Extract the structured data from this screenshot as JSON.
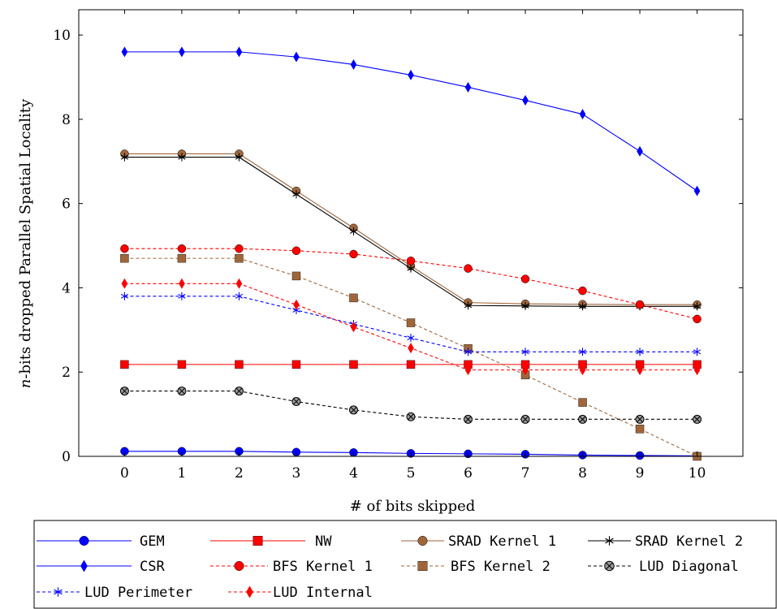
{
  "chart_data": {
    "type": "line",
    "xlabel": "# of bits skipped",
    "ylabel_prefix": "n",
    "ylabel_suffix": "-bits dropped Parallel Spatial Locality",
    "xlim": [
      -0.8,
      10.8
    ],
    "ylim": [
      0,
      10.6
    ],
    "x_ticks": [
      "0",
      "1",
      "2",
      "3",
      "4",
      "5",
      "6",
      "7",
      "8",
      "9",
      "10"
    ],
    "y_ticks": [
      "0",
      "2",
      "4",
      "6",
      "8",
      "10"
    ],
    "x": [
      0,
      1,
      2,
      3,
      4,
      5,
      6,
      7,
      8,
      9,
      10
    ],
    "grid": false,
    "legend_position": "bottom",
    "series": [
      {
        "name": "GEM",
        "color": "#0000ff",
        "dashed": false,
        "marker": "circle",
        "values": [
          0.12,
          0.12,
          0.12,
          0.1,
          0.09,
          0.07,
          0.06,
          0.05,
          0.03,
          0.02,
          0.01
        ]
      },
      {
        "name": "NW",
        "color": "#ff0000",
        "dashed": false,
        "marker": "square",
        "values": [
          2.18,
          2.18,
          2.18,
          2.18,
          2.18,
          2.18,
          2.18,
          2.18,
          2.18,
          2.18,
          2.18
        ]
      },
      {
        "name": "SRAD Kernel 1",
        "color": "#a0663a",
        "dashed": false,
        "marker": "circle",
        "values": [
          7.18,
          7.18,
          7.18,
          6.3,
          5.42,
          4.52,
          3.65,
          3.62,
          3.61,
          3.6,
          3.6
        ]
      },
      {
        "name": "SRAD Kernel 2",
        "color": "#000000",
        "dashed": false,
        "marker": "star",
        "values": [
          7.1,
          7.1,
          7.1,
          6.22,
          5.34,
          4.46,
          3.58,
          3.57,
          3.56,
          3.56,
          3.56
        ]
      },
      {
        "name": "CSR",
        "color": "#0000ff",
        "dashed": false,
        "marker": "diamond",
        "values": [
          9.6,
          9.6,
          9.6,
          9.48,
          9.3,
          9.05,
          8.76,
          8.45,
          8.12,
          7.24,
          6.3
        ]
      },
      {
        "name": "BFS Kernel 1",
        "color": "#ff0000",
        "dashed": true,
        "marker": "circle",
        "values": [
          4.93,
          4.93,
          4.93,
          4.88,
          4.8,
          4.64,
          4.46,
          4.21,
          3.93,
          3.6,
          3.26
        ]
      },
      {
        "name": "BFS Kernel 2",
        "color": "#a0663a",
        "dashed": true,
        "marker": "square",
        "values": [
          4.7,
          4.7,
          4.7,
          4.28,
          3.76,
          3.17,
          2.56,
          1.93,
          1.28,
          0.65,
          0.0
        ]
      },
      {
        "name": "LUD Diagonal",
        "color": "#000000",
        "dashed": true,
        "marker": "otimes",
        "values": [
          1.55,
          1.55,
          1.55,
          1.3,
          1.1,
          0.94,
          0.88,
          0.88,
          0.88,
          0.88,
          0.88
        ]
      },
      {
        "name": "LUD Perimeter",
        "color": "#0000ff",
        "dashed": true,
        "marker": "star",
        "values": [
          3.8,
          3.8,
          3.8,
          3.47,
          3.14,
          2.81,
          2.48,
          2.48,
          2.48,
          2.48,
          2.48
        ]
      },
      {
        "name": "LUD Internal",
        "color": "#ff0000",
        "dashed": true,
        "marker": "diamond",
        "values": [
          4.1,
          4.1,
          4.1,
          3.6,
          3.07,
          2.57,
          2.05,
          2.05,
          2.05,
          2.05,
          2.05
        ]
      }
    ]
  }
}
